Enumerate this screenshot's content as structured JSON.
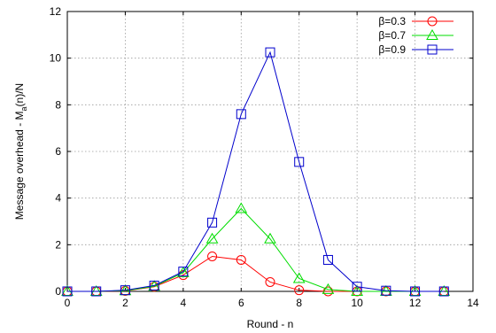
{
  "chart_data": {
    "type": "line",
    "xlabel": "Round - n",
    "ylabel": "Message overhead - M_a(n)/N",
    "ylabel_parts": {
      "pre": "Message overhead - M",
      "sub": "a",
      "post": "(n)/N"
    },
    "xlim": [
      0,
      14
    ],
    "ylim": [
      0,
      12
    ],
    "xticks": [
      0,
      2,
      4,
      6,
      8,
      10,
      12,
      14
    ],
    "yticks": [
      0,
      2,
      4,
      6,
      8,
      10,
      12
    ],
    "grid": true,
    "legend_position": "top-right",
    "series": [
      {
        "name": "β=0.3",
        "color": "#ff0000",
        "marker": "circle",
        "x": [
          0,
          1,
          2,
          3,
          4,
          5,
          6,
          7,
          8,
          9,
          10,
          11,
          12,
          13
        ],
        "y": [
          0,
          0,
          0.02,
          0.2,
          0.7,
          1.5,
          1.35,
          0.4,
          0.05,
          0,
          0,
          0,
          0,
          0
        ]
      },
      {
        "name": "β=0.7",
        "color": "#00dd00",
        "marker": "triangle",
        "x": [
          0,
          1,
          2,
          3,
          4,
          5,
          6,
          7,
          8,
          9,
          10,
          11,
          12,
          13
        ],
        "y": [
          0,
          0,
          0.03,
          0.22,
          0.8,
          2.25,
          3.55,
          2.25,
          0.55,
          0.08,
          0,
          0,
          0,
          0
        ]
      },
      {
        "name": "β=0.9",
        "color": "#0000cc",
        "marker": "square",
        "x": [
          0,
          1,
          2,
          3,
          4,
          5,
          6,
          7,
          8,
          9,
          10,
          11,
          12,
          13
        ],
        "y": [
          0,
          0,
          0.05,
          0.25,
          0.85,
          2.95,
          7.6,
          10.25,
          5.55,
          1.35,
          0.2,
          0.03,
          0,
          0
        ]
      }
    ]
  }
}
